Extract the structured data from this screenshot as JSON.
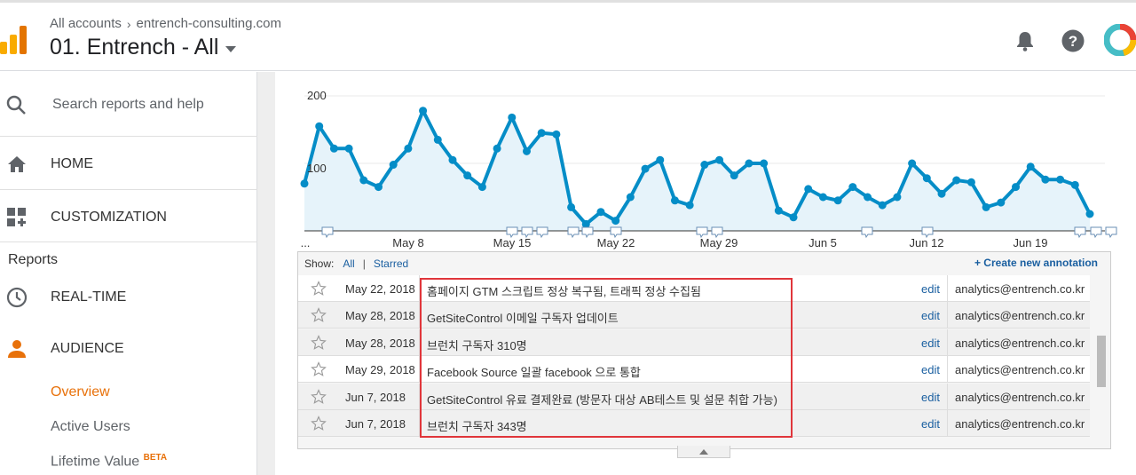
{
  "header": {
    "breadcrumb_root": "All accounts",
    "breadcrumb_property": "entrench-consulting.com",
    "view_name": "01. Entrench - All"
  },
  "sidebar": {
    "search_placeholder": "Search reports and help",
    "home": "HOME",
    "customization": "CUSTOMIZATION",
    "reports_heading": "Reports",
    "realtime": "REAL-TIME",
    "audience": "AUDIENCE",
    "overview": "Overview",
    "active_users": "Active Users",
    "lifetime_value": "Lifetime Value",
    "beta": "BETA"
  },
  "colors": {
    "accent_orange": "#e8710a",
    "line_blue": "#058dc7",
    "area_fill": "#e6f3fa",
    "highlight_red": "#e0363b",
    "link_blue": "#1a5fa0"
  },
  "chart_data": {
    "type": "area",
    "y_ticks": [
      "100",
      "200"
    ],
    "x_tick_labels": [
      "...",
      "May 8",
      "May 15",
      "May 22",
      "May 29",
      "Jun 5",
      "Jun 12",
      "Jun 19"
    ],
    "ylim": [
      0,
      200
    ],
    "values": [
      70,
      155,
      122,
      122,
      75,
      65,
      98,
      122,
      178,
      135,
      105,
      82,
      65,
      122,
      168,
      118,
      145,
      143,
      35,
      10,
      28,
      15,
      50,
      92,
      105,
      45,
      38,
      98,
      105,
      82,
      100,
      100,
      30,
      20,
      62,
      50,
      45,
      65,
      50,
      38,
      50,
      100,
      78,
      55,
      75,
      72,
      35,
      42,
      65,
      95,
      76,
      76,
      68,
      25
    ],
    "grid": true
  },
  "annotations": {
    "show_label": "Show:",
    "filter_all": "All",
    "filter_sep": "|",
    "filter_starred": "Starred",
    "create_label": "+ Create new annotation",
    "rows": [
      {
        "date": "May 22, 2018",
        "text": "홈페이지 GTM 스크립트 정상 복구됨, 트래픽 정상 수집됨",
        "edit": "edit",
        "user": "analytics@entrench.co.kr"
      },
      {
        "date": "May 28, 2018",
        "text": "GetSiteControl 이메일 구독자 업데이트",
        "edit": "edit",
        "user": "analytics@entrench.co.kr"
      },
      {
        "date": "May 28, 2018",
        "text": "브런치 구독자 310명",
        "edit": "edit",
        "user": "analytics@entrench.co.kr"
      },
      {
        "date": "May 29, 2018",
        "text": "Facebook Source 일괄 facebook 으로 통합",
        "edit": "edit",
        "user": "analytics@entrench.co.kr"
      },
      {
        "date": "Jun 7, 2018",
        "text": "GetSiteControl 유료 결제완료 (방문자 대상 AB테스트 및 설문 취합 가능)",
        "edit": "edit",
        "user": "analytics@entrench.co.kr"
      },
      {
        "date": "Jun 7, 2018",
        "text": "브런치 구독자 343명",
        "edit": "edit",
        "user": "analytics@entrench.co.kr"
      }
    ]
  }
}
